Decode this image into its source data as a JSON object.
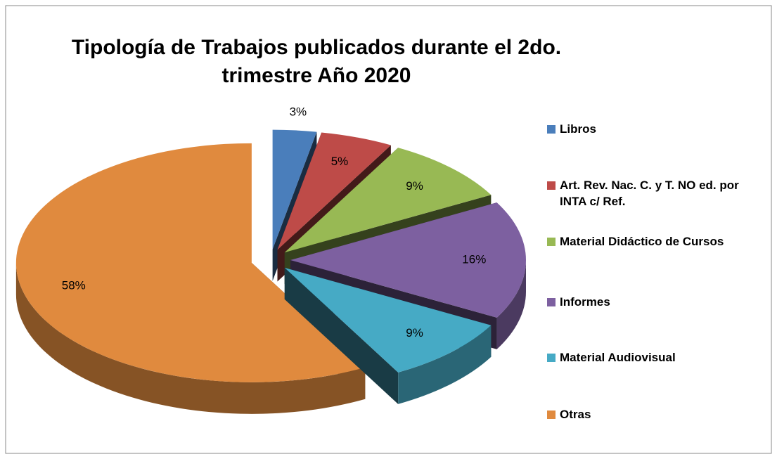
{
  "chart_data": {
    "type": "pie3d",
    "title": "Tipología de Trabajos publicados durante el 2do. trimestre Año 2020",
    "categories": [
      "Libros",
      "Art. Rev. Nac. C. y T. NO ed. por INTA c/ Ref.",
      "Material Didáctico de Cursos",
      "Informes",
      "Material Audiovisual",
      "Otras"
    ],
    "values": [
      3,
      5,
      9,
      16,
      9,
      58
    ],
    "value_labels": [
      "3%",
      "5%",
      "9%",
      "16%",
      "9%",
      "58%"
    ],
    "colors": [
      "#4a7ebb",
      "#be4b48",
      "#98b954",
      "#7d60a0",
      "#46aac5",
      "#e08a3e"
    ],
    "legend": "right"
  }
}
